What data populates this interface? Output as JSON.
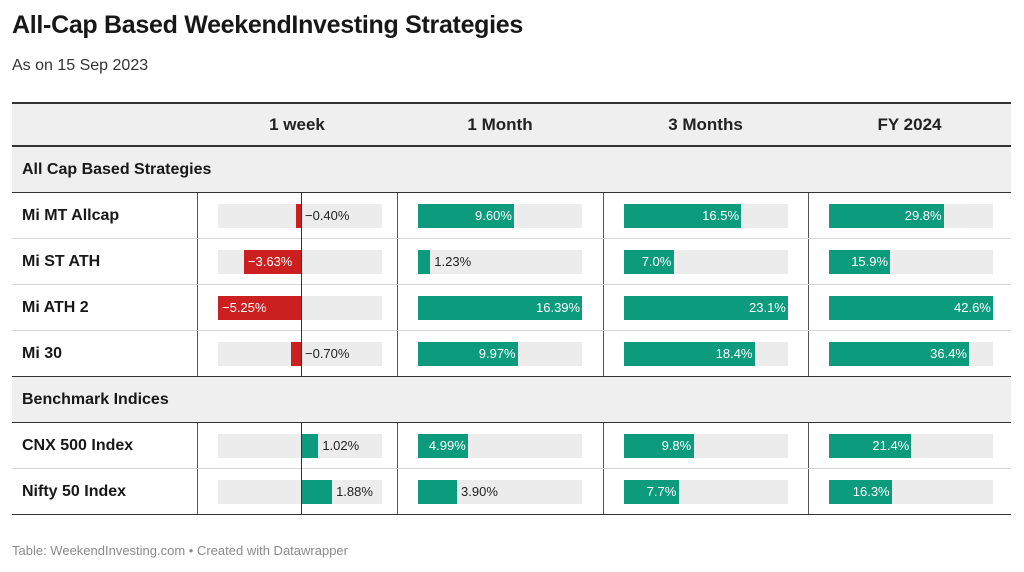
{
  "title": "All-Cap Based WeekendInvesting Strategies",
  "subtitle": "As on 15 Sep 2023",
  "footer": "Table: WeekendInvesting.com • Created with Datawrapper",
  "colors": {
    "positive": "#0d9b7e",
    "negative": "#cc1f1f",
    "track": "#ececec",
    "header_bg": "#efefef"
  },
  "chart_data": {
    "type": "table",
    "columns": [
      "1 week",
      "1 Month",
      "3 Months",
      "FY 2024"
    ],
    "groups": [
      {
        "name": "All Cap Based Strategies",
        "rows": [
          {
            "name": "Mi MT Allcap",
            "values": [
              -0.4,
              9.6,
              16.5,
              29.8
            ],
            "labels": [
              "−0.40%",
              "9.60%",
              "16.5%",
              "29.8%"
            ]
          },
          {
            "name": "Mi ST ATH",
            "values": [
              -3.63,
              1.23,
              7.0,
              15.9
            ],
            "labels": [
              "−3.63%",
              "1.23%",
              "7.0%",
              "15.9%"
            ]
          },
          {
            "name": "Mi ATH 2",
            "values": [
              -5.25,
              16.39,
              23.1,
              42.6
            ],
            "labels": [
              "−5.25%",
              "16.39%",
              "23.1%",
              "42.6%"
            ]
          },
          {
            "name": "Mi 30",
            "values": [
              -0.7,
              9.97,
              18.4,
              36.4
            ],
            "labels": [
              "−0.70%",
              "9.97%",
              "18.4%",
              "36.4%"
            ]
          }
        ]
      },
      {
        "name": "Benchmark Indices",
        "rows": [
          {
            "name": "CNX 500 Index",
            "values": [
              1.02,
              4.99,
              9.8,
              21.4
            ],
            "labels": [
              "1.02%",
              "4.99%",
              "9.8%",
              "21.4%"
            ]
          },
          {
            "name": "Nifty 50 Index",
            "values": [
              1.88,
              3.9,
              7.7,
              16.3
            ],
            "labels": [
              "1.88%",
              "3.90%",
              "7.7%",
              "16.3%"
            ]
          }
        ]
      }
    ],
    "column_ranges": [
      [
        -5.25,
        5.0
      ],
      [
        0,
        16.39
      ],
      [
        0,
        23.1
      ],
      [
        0,
        42.6
      ]
    ]
  }
}
